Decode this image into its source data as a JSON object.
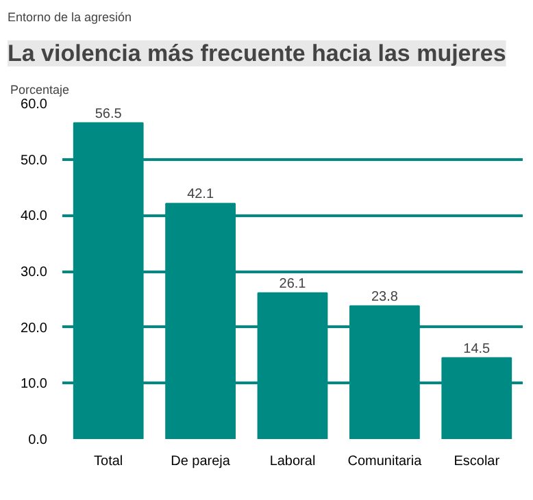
{
  "chart_data": {
    "type": "bar",
    "title": "La violencia más frecuente hacia las mujeres",
    "subtitle": "Entorno de la agresión",
    "ylabel": "Porcentaje",
    "categories": [
      "Total",
      "De pareja",
      "Laboral",
      "Comunitaria",
      "Escolar"
    ],
    "values": [
      56.5,
      42.1,
      26.1,
      23.8,
      14.5
    ],
    "color": "#008a84",
    "ylim": [
      0,
      60
    ],
    "yticks": [
      {
        "value": 0,
        "label": "0.0"
      },
      {
        "value": 10,
        "label": "10.0"
      },
      {
        "value": 20,
        "label": "20.0"
      },
      {
        "value": 30,
        "label": "30.0"
      },
      {
        "value": 40,
        "label": "40.0"
      },
      {
        "value": 50,
        "label": "50.0"
      },
      {
        "value": 60,
        "label": "60.0"
      }
    ],
    "grid": "y",
    "data_labels": true
  }
}
